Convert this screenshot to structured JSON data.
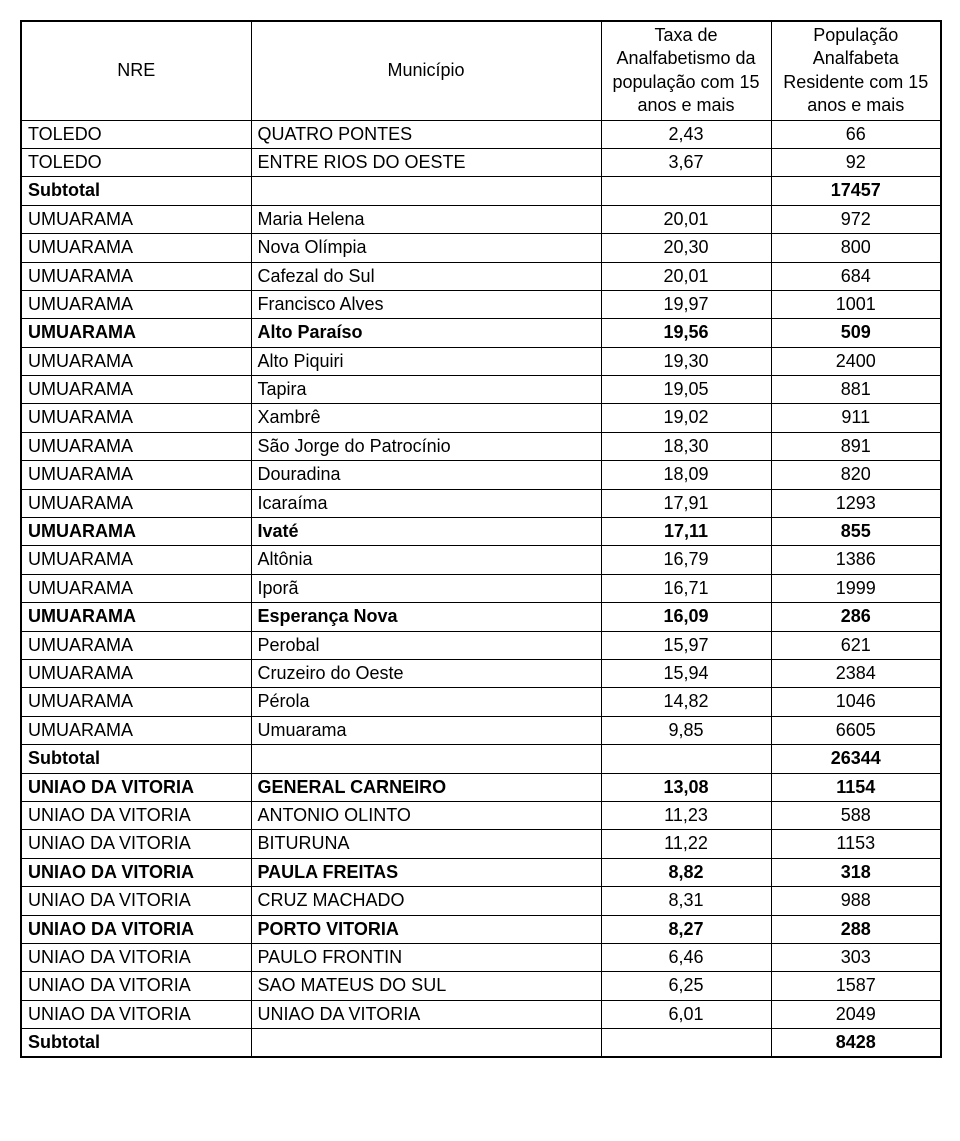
{
  "header": {
    "col1": "NRE",
    "col2": "Município",
    "col3": "Taxa de Analfabetismo da população com 15 anos e mais",
    "col4": "População Analfabeta Residente com 15 anos e mais"
  },
  "rows": [
    {
      "nre": "TOLEDO",
      "mun": "QUATRO PONTES",
      "taxa": "2,43",
      "pop": "66",
      "bold": false
    },
    {
      "nre": "TOLEDO",
      "mun": "ENTRE RIOS DO OESTE",
      "taxa": "3,67",
      "pop": "92",
      "bold": false
    },
    {
      "nre": "Subtotal",
      "mun": "",
      "taxa": "",
      "pop": "17457",
      "bold": true
    },
    {
      "nre": "UMUARAMA",
      "mun": "Maria Helena",
      "taxa": "20,01",
      "pop": "972",
      "bold": false
    },
    {
      "nre": "UMUARAMA",
      "mun": "Nova Olímpia",
      "taxa": "20,30",
      "pop": "800",
      "bold": false
    },
    {
      "nre": "UMUARAMA",
      "mun": "Cafezal do Sul",
      "taxa": "20,01",
      "pop": "684",
      "bold": false
    },
    {
      "nre": "UMUARAMA",
      "mun": "Francisco Alves",
      "taxa": "19,97",
      "pop": "1001",
      "bold": false
    },
    {
      "nre": "UMUARAMA",
      "mun": "Alto Paraíso",
      "taxa": "19,56",
      "pop": "509",
      "bold": true
    },
    {
      "nre": "UMUARAMA",
      "mun": "Alto Piquiri",
      "taxa": "19,30",
      "pop": "2400",
      "bold": false
    },
    {
      "nre": "UMUARAMA",
      "mun": "Tapira",
      "taxa": "19,05",
      "pop": "881",
      "bold": false
    },
    {
      "nre": "UMUARAMA",
      "mun": "Xambrê",
      "taxa": "19,02",
      "pop": "911",
      "bold": false
    },
    {
      "nre": "UMUARAMA",
      "mun": "São Jorge do Patrocínio",
      "taxa": "18,30",
      "pop": "891",
      "bold": false
    },
    {
      "nre": "UMUARAMA",
      "mun": "Douradina",
      "taxa": "18,09",
      "pop": "820",
      "bold": false
    },
    {
      "nre": "UMUARAMA",
      "mun": "Icaraíma",
      "taxa": "17,91",
      "pop": "1293",
      "bold": false
    },
    {
      "nre": "UMUARAMA",
      "mun": "Ivaté",
      "taxa": "17,11",
      "pop": "855",
      "bold": true
    },
    {
      "nre": "UMUARAMA",
      "mun": "Altônia",
      "taxa": "16,79",
      "pop": "1386",
      "bold": false
    },
    {
      "nre": "UMUARAMA",
      "mun": "Iporã",
      "taxa": "16,71",
      "pop": "1999",
      "bold": false
    },
    {
      "nre": "UMUARAMA",
      "mun": "Esperança Nova",
      "taxa": "16,09",
      "pop": "286",
      "bold": true
    },
    {
      "nre": "UMUARAMA",
      "mun": "Perobal",
      "taxa": "15,97",
      "pop": "621",
      "bold": false
    },
    {
      "nre": "UMUARAMA",
      "mun": "Cruzeiro do Oeste",
      "taxa": "15,94",
      "pop": "2384",
      "bold": false
    },
    {
      "nre": "UMUARAMA",
      "mun": "Pérola",
      "taxa": "14,82",
      "pop": "1046",
      "bold": false
    },
    {
      "nre": "UMUARAMA",
      "mun": "Umuarama",
      "taxa": "9,85",
      "pop": "6605",
      "bold": false
    },
    {
      "nre": "Subtotal",
      "mun": "",
      "taxa": "",
      "pop": "26344",
      "bold": true
    },
    {
      "nre": "UNIAO DA VITORIA",
      "mun": "GENERAL CARNEIRO",
      "taxa": "13,08",
      "pop": "1154",
      "bold": true
    },
    {
      "nre": "UNIAO DA VITORIA",
      "mun": "ANTONIO OLINTO",
      "taxa": "11,23",
      "pop": "588",
      "bold": false
    },
    {
      "nre": "UNIAO DA VITORIA",
      "mun": "BITURUNA",
      "taxa": "11,22",
      "pop": "1153",
      "bold": false
    },
    {
      "nre": "UNIAO DA VITORIA",
      "mun": "PAULA FREITAS",
      "taxa": "8,82",
      "pop": "318",
      "bold": true
    },
    {
      "nre": "UNIAO DA VITORIA",
      "mun": "CRUZ MACHADO",
      "taxa": "8,31",
      "pop": "988",
      "bold": false
    },
    {
      "nre": "UNIAO DA VITORIA",
      "mun": "PORTO VITORIA",
      "taxa": "8,27",
      "pop": "288",
      "bold": true
    },
    {
      "nre": "UNIAO DA VITORIA",
      "mun": "PAULO FRONTIN",
      "taxa": "6,46",
      "pop": "303",
      "bold": false
    },
    {
      "nre": "UNIAO DA VITORIA",
      "mun": "SAO MATEUS DO SUL",
      "taxa": "6,25",
      "pop": "1587",
      "bold": false
    },
    {
      "nre": "UNIAO DA VITORIA",
      "mun": "UNIAO DA VITORIA",
      "taxa": "6,01",
      "pop": "2049",
      "bold": false
    },
    {
      "nre": "Subtotal",
      "mun": "",
      "taxa": "",
      "pop": "8428",
      "bold": true
    }
  ]
}
